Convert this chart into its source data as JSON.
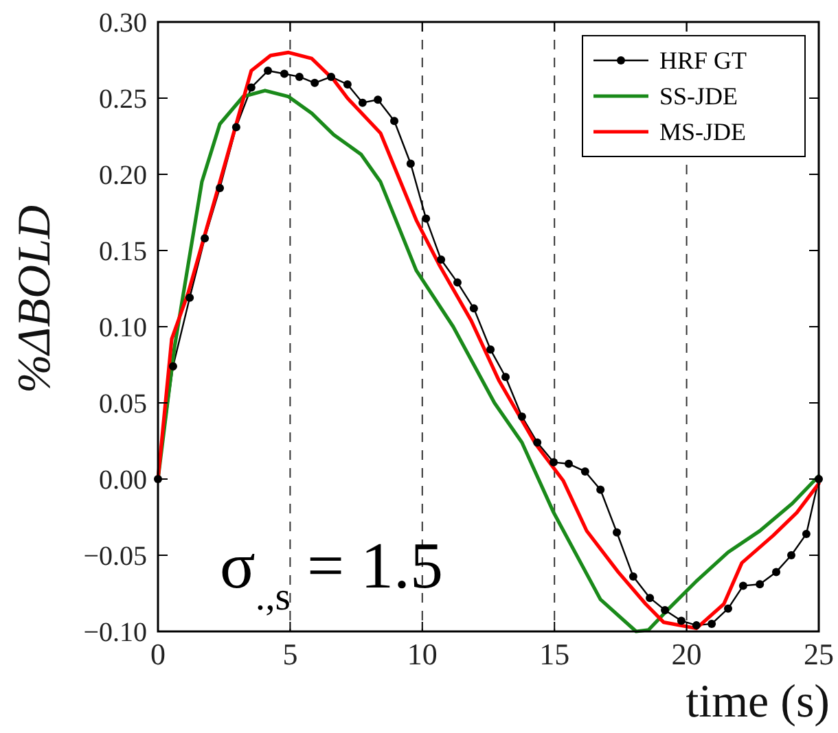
{
  "chart_data": {
    "type": "line",
    "xlabel": "time (s)",
    "ylabel": "%ΔBOLD",
    "xlim": [
      0,
      25
    ],
    "ylim": [
      -0.1,
      0.3
    ],
    "xticks": [
      0,
      5,
      10,
      15,
      20,
      25
    ],
    "yticks": [
      {
        "value": -0.1,
        "label": "−0.10"
      },
      {
        "value": -0.05,
        "label": "−0.05"
      },
      {
        "value": 0,
        "label": "0.00"
      },
      {
        "value": 0.05,
        "label": "0.05"
      },
      {
        "value": 0.1,
        "label": "0.10"
      },
      {
        "value": 0.15,
        "label": "0.15"
      },
      {
        "value": 0.2,
        "label": "0.20"
      },
      {
        "value": 0.25,
        "label": "0.25"
      },
      {
        "value": 0.3,
        "label": "0.30"
      }
    ],
    "grid": "x",
    "legend": "top right",
    "line_style": "solid",
    "annotations": [
      "σ$_{.,s}$ = 1.5"
    ],
    "series": [
      {
        "name": "HRF GT",
        "color": "#000000",
        "marker": "circle",
        "x": [
          0,
          0.57,
          1.2,
          1.77,
          2.34,
          2.96,
          3.53,
          4.16,
          4.78,
          5.35,
          5.93,
          6.55,
          7.17,
          7.74,
          8.32,
          8.94,
          9.56,
          10.14,
          10.71,
          11.33,
          11.95,
          12.58,
          13.15,
          13.77,
          14.35,
          14.97,
          15.54,
          16.16,
          16.74,
          17.36,
          17.98,
          18.61,
          19.18,
          19.8,
          20.37,
          20.95,
          21.57,
          22.14,
          22.77,
          23.39,
          23.96,
          24.53,
          25
        ],
        "values": [
          0,
          0.074,
          0.119,
          0.158,
          0.191,
          0.231,
          0.257,
          0.268,
          0.266,
          0.264,
          0.26,
          0.264,
          0.259,
          0.247,
          0.249,
          0.235,
          0.207,
          0.171,
          0.144,
          0.129,
          0.112,
          0.085,
          0.067,
          0.041,
          0.024,
          0.011,
          0.01,
          0.005,
          -0.007,
          -0.035,
          -0.064,
          -0.078,
          -0.086,
          -0.093,
          -0.096,
          -0.095,
          -0.085,
          -0.07,
          -0.069,
          -0.061,
          -0.05,
          -0.036,
          0
        ]
      },
      {
        "name": "SS-JDE",
        "color": "#1a8a1a",
        "marker": "none",
        "x": [
          0,
          0.62,
          1.66,
          2.34,
          3.22,
          4.05,
          4.94,
          5.82,
          6.65,
          7.69,
          8.42,
          9.77,
          11.17,
          12.73,
          13.77,
          14.97,
          16.74,
          18.09,
          18.56,
          19.33,
          20.37,
          21.57,
          22.77,
          24.0,
          25
        ],
        "values": [
          0,
          0.086,
          0.195,
          0.233,
          0.251,
          0.255,
          0.251,
          0.24,
          0.226,
          0.213,
          0.195,
          0.137,
          0.1,
          0.05,
          0.024,
          -0.022,
          -0.079,
          -0.1,
          -0.099,
          -0.085,
          -0.067,
          -0.048,
          -0.034,
          -0.016,
          0.002
        ]
      },
      {
        "name": "MS-JDE",
        "color": "#ff0000",
        "marker": "none",
        "x": [
          0,
          0.52,
          1.14,
          2.34,
          2.96,
          3.53,
          4.26,
          4.94,
          5.82,
          6.65,
          7.17,
          8.42,
          9.77,
          10.66,
          11.85,
          12.89,
          14.29,
          15.33,
          16.22,
          17.41,
          18.45,
          19.13,
          20.37,
          21.41,
          22.09,
          23.28,
          24.17,
          25
        ],
        "values": [
          0,
          0.092,
          0.122,
          0.195,
          0.233,
          0.268,
          0.278,
          0.28,
          0.276,
          0.262,
          0.25,
          0.227,
          0.17,
          0.14,
          0.104,
          0.065,
          0.023,
          -0.001,
          -0.034,
          -0.061,
          -0.082,
          -0.094,
          -0.098,
          -0.082,
          -0.055,
          -0.037,
          -0.022,
          -0.003
        ]
      }
    ]
  }
}
